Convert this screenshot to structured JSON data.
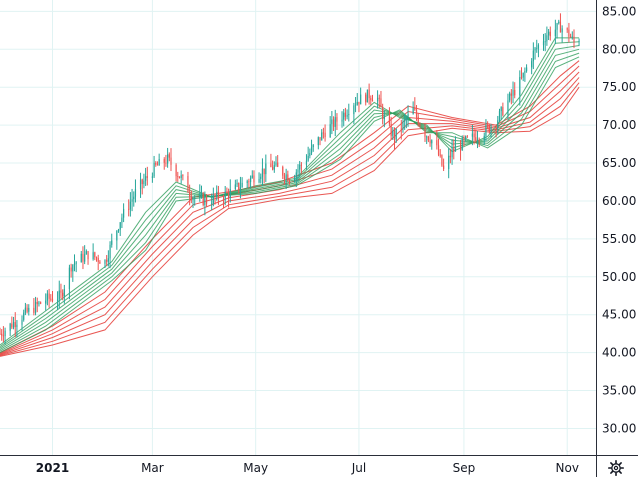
{
  "chart_data": {
    "type": "candlestick",
    "x_ticks": [
      {
        "label": "2021",
        "date": "2021-01-01",
        "bold": true
      },
      {
        "label": "Mar",
        "date": "2021-03-01",
        "bold": false
      },
      {
        "label": "May",
        "date": "2021-05-01",
        "bold": false
      },
      {
        "label": "Jul",
        "date": "2021-07-01",
        "bold": false
      },
      {
        "label": "Sep",
        "date": "2021-09-01",
        "bold": false
      },
      {
        "label": "Nov",
        "date": "2021-11-01",
        "bold": false
      }
    ],
    "y_ticks": [
      "85.00",
      "80.00",
      "75.00",
      "70.00",
      "65.00",
      "60.00",
      "55.00",
      "50.00",
      "45.00",
      "40.00",
      "35.00",
      "30.00"
    ],
    "ylim": [
      26.5,
      86.5
    ],
    "xlim": [
      "2020-12-01",
      "2021-11-18"
    ],
    "grid": true,
    "colors": {
      "up": "#26a69a",
      "down": "#ef5350",
      "short_ma": "#2e9e5b",
      "long_ma": "#e53935",
      "grid": "#e0f3f3",
      "axis_text": "#131722"
    },
    "price_path": [
      [
        "2020-12-01",
        42.5
      ],
      [
        "2020-12-15",
        45.0
      ],
      [
        "2020-12-28",
        47.0
      ],
      [
        "2021-01-06",
        47.5
      ],
      [
        "2021-01-12",
        51.5
      ],
      [
        "2021-01-22",
        53.0
      ],
      [
        "2021-02-01",
        52.0
      ],
      [
        "2021-02-10",
        57.5
      ],
      [
        "2021-02-20",
        61.5
      ],
      [
        "2021-03-03",
        64.5
      ],
      [
        "2021-03-10",
        65.5
      ],
      [
        "2021-03-18",
        63.0
      ],
      [
        "2021-03-25",
        60.5
      ],
      [
        "2021-04-02",
        60.0
      ],
      [
        "2021-04-15",
        61.0
      ],
      [
        "2021-04-25",
        62.5
      ],
      [
        "2021-05-05",
        64.0
      ],
      [
        "2021-05-12",
        64.5
      ],
      [
        "2021-05-22",
        63.0
      ],
      [
        "2021-06-01",
        66.0
      ],
      [
        "2021-06-10",
        69.0
      ],
      [
        "2021-06-20",
        71.0
      ],
      [
        "2021-06-28",
        73.0
      ],
      [
        "2021-07-07",
        74.0
      ],
      [
        "2021-07-12",
        73.5
      ],
      [
        "2021-07-17",
        70.0
      ],
      [
        "2021-07-22",
        68.5
      ],
      [
        "2021-08-02",
        72.0
      ],
      [
        "2021-08-09",
        69.0
      ],
      [
        "2021-08-15",
        67.5
      ],
      [
        "2021-08-20",
        64.0
      ],
      [
        "2021-08-25",
        66.5
      ],
      [
        "2021-09-03",
        68.0
      ],
      [
        "2021-09-12",
        69.0
      ],
      [
        "2021-09-20",
        70.5
      ],
      [
        "2021-09-28",
        73.5
      ],
      [
        "2021-10-05",
        76.0
      ],
      [
        "2021-10-12",
        79.5
      ],
      [
        "2021-10-20",
        82.0
      ],
      [
        "2021-10-28",
        83.0
      ],
      [
        "2021-11-02",
        82.0
      ],
      [
        "2021-11-06",
        80.5
      ],
      [
        "2021-11-08",
        81.5
      ]
    ],
    "short_mas": [
      {
        "name": "",
        "points": [
          [
            "2020-12-01",
            41.0
          ],
          [
            "2020-12-28",
            45.5
          ],
          [
            "2021-01-15",
            48.5
          ],
          [
            "2021-02-05",
            52.0
          ],
          [
            "2021-02-25",
            58.5
          ],
          [
            "2021-03-15",
            62.5
          ],
          [
            "2021-04-05",
            60.5
          ],
          [
            "2021-05-01",
            62.0
          ],
          [
            "2021-05-25",
            63.0
          ],
          [
            "2021-06-20",
            69.0
          ],
          [
            "2021-07-10",
            73.0
          ],
          [
            "2021-07-25",
            71.0
          ],
          [
            "2021-08-10",
            70.0
          ],
          [
            "2021-08-25",
            66.5
          ],
          [
            "2021-09-15",
            68.5
          ],
          [
            "2021-10-05",
            74.0
          ],
          [
            "2021-10-25",
            81.5
          ],
          [
            "2021-11-08",
            81.5
          ]
        ]
      },
      {
        "name": "",
        "points": [
          [
            "2020-12-01",
            40.8
          ],
          [
            "2020-12-28",
            45.0
          ],
          [
            "2021-01-15",
            48.0
          ],
          [
            "2021-02-05",
            51.5
          ],
          [
            "2021-02-25",
            57.5
          ],
          [
            "2021-03-15",
            62.0
          ],
          [
            "2021-04-05",
            60.5
          ],
          [
            "2021-05-01",
            61.8
          ],
          [
            "2021-05-25",
            62.8
          ],
          [
            "2021-06-20",
            68.3
          ],
          [
            "2021-07-10",
            72.5
          ],
          [
            "2021-07-25",
            71.2
          ],
          [
            "2021-08-10",
            69.8
          ],
          [
            "2021-08-25",
            67.0
          ],
          [
            "2021-09-15",
            68.2
          ],
          [
            "2021-10-05",
            73.2
          ],
          [
            "2021-10-25",
            80.8
          ],
          [
            "2021-11-08",
            81.0
          ]
        ]
      },
      {
        "name": "",
        "points": [
          [
            "2020-12-01",
            40.6
          ],
          [
            "2020-12-28",
            44.5
          ],
          [
            "2021-01-15",
            47.5
          ],
          [
            "2021-02-05",
            51.0
          ],
          [
            "2021-02-25",
            56.5
          ],
          [
            "2021-03-15",
            61.5
          ],
          [
            "2021-04-05",
            60.5
          ],
          [
            "2021-05-01",
            61.6
          ],
          [
            "2021-05-25",
            62.6
          ],
          [
            "2021-06-20",
            67.6
          ],
          [
            "2021-07-10",
            72.0
          ],
          [
            "2021-07-25",
            71.4
          ],
          [
            "2021-08-10",
            69.6
          ],
          [
            "2021-08-25",
            67.5
          ],
          [
            "2021-09-15",
            67.9
          ],
          [
            "2021-10-05",
            72.4
          ],
          [
            "2021-10-25",
            80.0
          ],
          [
            "2021-11-08",
            80.5
          ]
        ]
      },
      {
        "name": "",
        "points": [
          [
            "2020-12-01",
            40.4
          ],
          [
            "2020-12-28",
            44.0
          ],
          [
            "2021-01-15",
            47.0
          ],
          [
            "2021-02-05",
            50.5
          ],
          [
            "2021-02-25",
            55.5
          ],
          [
            "2021-03-15",
            61.0
          ],
          [
            "2021-04-05",
            60.6
          ],
          [
            "2021-05-01",
            61.4
          ],
          [
            "2021-05-25",
            62.4
          ],
          [
            "2021-06-20",
            66.9
          ],
          [
            "2021-07-10",
            71.5
          ],
          [
            "2021-07-25",
            71.6
          ],
          [
            "2021-08-10",
            69.4
          ],
          [
            "2021-08-25",
            68.0
          ],
          [
            "2021-09-15",
            67.6
          ],
          [
            "2021-10-05",
            71.6
          ],
          [
            "2021-10-25",
            79.2
          ],
          [
            "2021-11-08",
            80.0
          ]
        ]
      },
      {
        "name": "",
        "points": [
          [
            "2020-12-01",
            40.2
          ],
          [
            "2020-12-28",
            43.5
          ],
          [
            "2021-01-15",
            46.5
          ],
          [
            "2021-02-05",
            50.0
          ],
          [
            "2021-02-25",
            54.5
          ],
          [
            "2021-03-15",
            60.5
          ],
          [
            "2021-04-05",
            60.6
          ],
          [
            "2021-05-01",
            61.2
          ],
          [
            "2021-05-25",
            62.2
          ],
          [
            "2021-06-20",
            66.2
          ],
          [
            "2021-07-10",
            71.0
          ],
          [
            "2021-07-25",
            71.8
          ],
          [
            "2021-08-10",
            69.2
          ],
          [
            "2021-08-25",
            68.5
          ],
          [
            "2021-09-15",
            67.3
          ],
          [
            "2021-10-05",
            70.8
          ],
          [
            "2021-10-25",
            78.4
          ],
          [
            "2021-11-08",
            79.5
          ]
        ]
      },
      {
        "name": "",
        "points": [
          [
            "2020-12-01",
            40.0
          ],
          [
            "2020-12-28",
            43.0
          ],
          [
            "2021-01-15",
            46.0
          ],
          [
            "2021-02-05",
            49.5
          ],
          [
            "2021-02-25",
            53.5
          ],
          [
            "2021-03-15",
            60.0
          ],
          [
            "2021-04-05",
            60.6
          ],
          [
            "2021-05-01",
            61.0
          ],
          [
            "2021-05-25",
            62.0
          ],
          [
            "2021-06-20",
            65.5
          ],
          [
            "2021-07-10",
            70.5
          ],
          [
            "2021-07-25",
            72.0
          ],
          [
            "2021-08-10",
            69.0
          ],
          [
            "2021-08-25",
            69.0
          ],
          [
            "2021-09-15",
            67.0
          ],
          [
            "2021-10-05",
            70.0
          ],
          [
            "2021-10-25",
            77.6
          ],
          [
            "2021-11-08",
            79.0
          ]
        ]
      }
    ],
    "long_mas": [
      {
        "name": "",
        "points": [
          [
            "2020-12-01",
            40.0
          ],
          [
            "2021-01-01",
            43.5
          ],
          [
            "2021-02-01",
            48.0
          ],
          [
            "2021-03-01",
            55.0
          ],
          [
            "2021-03-25",
            60.5
          ],
          [
            "2021-04-15",
            61.2
          ],
          [
            "2021-05-15",
            62.5
          ],
          [
            "2021-06-15",
            65.0
          ],
          [
            "2021-07-10",
            69.0
          ],
          [
            "2021-07-30",
            72.5
          ],
          [
            "2021-08-25",
            71.0
          ],
          [
            "2021-09-20",
            70.0
          ],
          [
            "2021-10-10",
            72.5
          ],
          [
            "2021-10-28",
            76.5
          ],
          [
            "2021-11-08",
            78.5
          ]
        ]
      },
      {
        "name": "",
        "points": [
          [
            "2020-12-01",
            39.9
          ],
          [
            "2021-01-01",
            43.0
          ],
          [
            "2021-02-01",
            47.0
          ],
          [
            "2021-03-01",
            54.0
          ],
          [
            "2021-03-25",
            59.5
          ],
          [
            "2021-04-15",
            60.8
          ],
          [
            "2021-05-15",
            62.0
          ],
          [
            "2021-06-15",
            64.2
          ],
          [
            "2021-07-10",
            68.0
          ],
          [
            "2021-07-30",
            71.8
          ],
          [
            "2021-08-25",
            70.8
          ],
          [
            "2021-09-20",
            69.8
          ],
          [
            "2021-10-10",
            71.8
          ],
          [
            "2021-10-28",
            75.5
          ],
          [
            "2021-11-08",
            77.8
          ]
        ]
      },
      {
        "name": "",
        "points": [
          [
            "2020-12-01",
            39.8
          ],
          [
            "2021-01-01",
            42.5
          ],
          [
            "2021-02-01",
            46.0
          ],
          [
            "2021-03-01",
            53.0
          ],
          [
            "2021-03-25",
            58.5
          ],
          [
            "2021-04-15",
            60.4
          ],
          [
            "2021-05-15",
            61.5
          ],
          [
            "2021-06-15",
            63.4
          ],
          [
            "2021-07-10",
            67.0
          ],
          [
            "2021-07-30",
            71.0
          ],
          [
            "2021-08-25",
            70.5
          ],
          [
            "2021-09-20",
            69.6
          ],
          [
            "2021-10-10",
            71.0
          ],
          [
            "2021-10-28",
            74.5
          ],
          [
            "2021-11-08",
            77.0
          ]
        ]
      },
      {
        "name": "",
        "points": [
          [
            "2020-12-01",
            39.7
          ],
          [
            "2021-01-01",
            42.0
          ],
          [
            "2021-02-01",
            45.0
          ],
          [
            "2021-03-01",
            52.0
          ],
          [
            "2021-03-25",
            57.5
          ],
          [
            "2021-04-15",
            60.0
          ],
          [
            "2021-05-15",
            61.0
          ],
          [
            "2021-06-15",
            62.6
          ],
          [
            "2021-07-10",
            66.0
          ],
          [
            "2021-07-30",
            70.2
          ],
          [
            "2021-08-25",
            70.2
          ],
          [
            "2021-09-20",
            69.4
          ],
          [
            "2021-10-10",
            70.4
          ],
          [
            "2021-10-28",
            73.5
          ],
          [
            "2021-11-08",
            76.3
          ]
        ]
      },
      {
        "name": "",
        "points": [
          [
            "2020-12-01",
            39.6
          ],
          [
            "2021-01-01",
            41.5
          ],
          [
            "2021-02-01",
            44.0
          ],
          [
            "2021-03-01",
            51.0
          ],
          [
            "2021-03-25",
            56.5
          ],
          [
            "2021-04-15",
            59.5
          ],
          [
            "2021-05-15",
            60.6
          ],
          [
            "2021-06-15",
            61.8
          ],
          [
            "2021-07-10",
            65.0
          ],
          [
            "2021-07-30",
            69.4
          ],
          [
            "2021-08-25",
            69.9
          ],
          [
            "2021-09-20",
            69.2
          ],
          [
            "2021-10-10",
            69.8
          ],
          [
            "2021-10-28",
            72.5
          ],
          [
            "2021-11-08",
            75.6
          ]
        ]
      },
      {
        "name": "",
        "points": [
          [
            "2020-12-01",
            39.5
          ],
          [
            "2021-01-01",
            41.0
          ],
          [
            "2021-02-01",
            43.0
          ],
          [
            "2021-03-01",
            50.0
          ],
          [
            "2021-03-25",
            55.5
          ],
          [
            "2021-04-15",
            59.0
          ],
          [
            "2021-05-15",
            60.2
          ],
          [
            "2021-06-15",
            61.0
          ],
          [
            "2021-07-10",
            64.0
          ],
          [
            "2021-07-30",
            68.6
          ],
          [
            "2021-08-25",
            69.6
          ],
          [
            "2021-09-20",
            69.0
          ],
          [
            "2021-10-10",
            69.2
          ],
          [
            "2021-10-28",
            71.5
          ],
          [
            "2021-11-08",
            75.0
          ]
        ]
      }
    ]
  },
  "toolbar": {
    "settings_icon": "gear-icon"
  }
}
